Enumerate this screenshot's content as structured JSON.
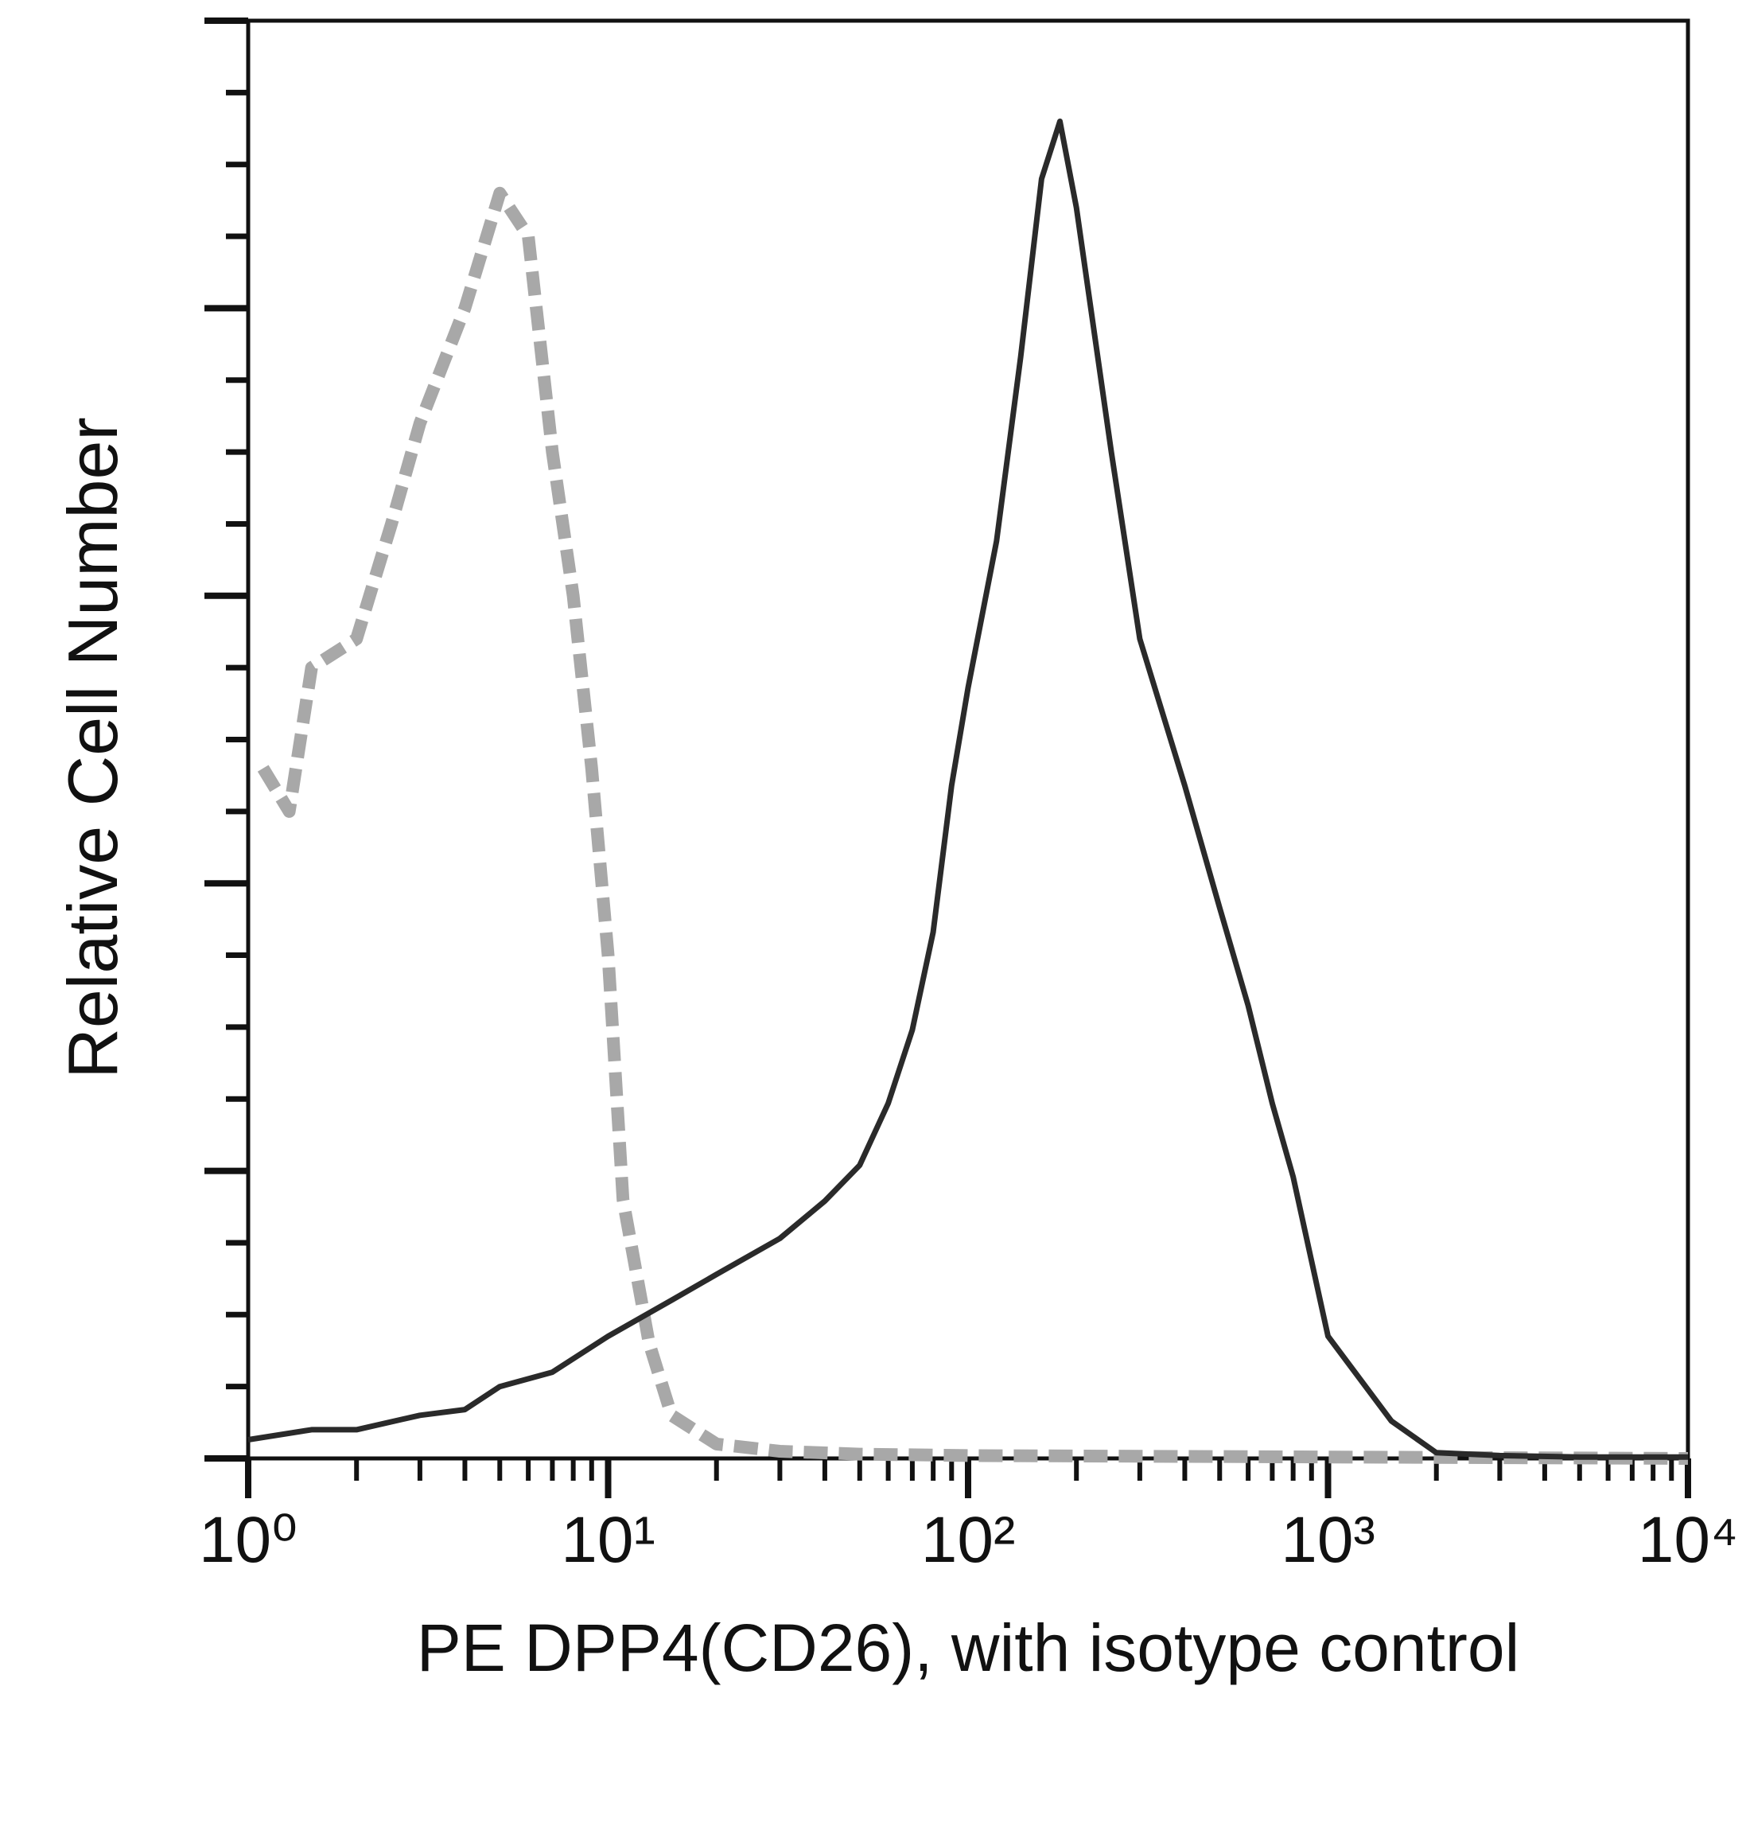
{
  "chart_data": {
    "type": "line",
    "y_axis_label": "Relative Cell Number",
    "x_axis_label": "PE DPP4(CD26), with isotype control",
    "x_scale": "log",
    "xlim": [
      1,
      10000
    ],
    "xticks": [
      {
        "value": 1,
        "label": "10⁰"
      },
      {
        "value": 10,
        "label": "10¹"
      },
      {
        "value": 100,
        "label": "10²"
      },
      {
        "value": 1000,
        "label": "10³"
      },
      {
        "value": 10000,
        "label": "10⁴"
      }
    ],
    "ylim": [
      0,
      100
    ],
    "yticks": [
      0,
      20,
      40,
      60,
      80,
      100
    ],
    "y_minor_ticks": [
      5,
      10,
      15,
      25,
      30,
      35,
      45,
      50,
      55,
      65,
      70,
      75,
      85,
      90,
      95
    ],
    "series": [
      {
        "color": "#a8a8a8",
        "style": "dashed",
        "x": [
          1.1,
          1.3,
          1.5,
          2,
          2.5,
          3,
          4,
          5,
          6,
          7,
          8,
          9,
          10,
          11,
          13,
          15,
          20,
          30,
          50,
          100,
          1000,
          10000
        ],
        "values": [
          48,
          45,
          55,
          57,
          65,
          72,
          80,
          88,
          85,
          70,
          60,
          48,
          35,
          18,
          8,
          3,
          1,
          0.5,
          0.3,
          0.2,
          0.1,
          0
        ]
      },
      {
        "color": "#2a2a2a",
        "style": "solid",
        "x": [
          1,
          1.5,
          2,
          3,
          4,
          5,
          7,
          10,
          15,
          20,
          30,
          40,
          50,
          60,
          70,
          80,
          90,
          100,
          120,
          140,
          160,
          180,
          200,
          250,
          300,
          400,
          500,
          600,
          700,
          800,
          1000,
          1500,
          2000,
          3000,
          5000,
          10000
        ],
        "values": [
          1.3,
          2,
          2,
          3,
          3.4,
          5,
          6,
          8.5,
          11,
          12.8,
          15.3,
          17.9,
          20.4,
          24.7,
          29.8,
          36.6,
          46.8,
          53.6,
          63.8,
          76.6,
          89,
          93,
          87,
          70,
          57,
          46.8,
          38.3,
          31.5,
          24.7,
          19.6,
          8.5,
          2.6,
          0.4,
          0.2,
          0.1,
          0.1
        ]
      }
    ]
  }
}
